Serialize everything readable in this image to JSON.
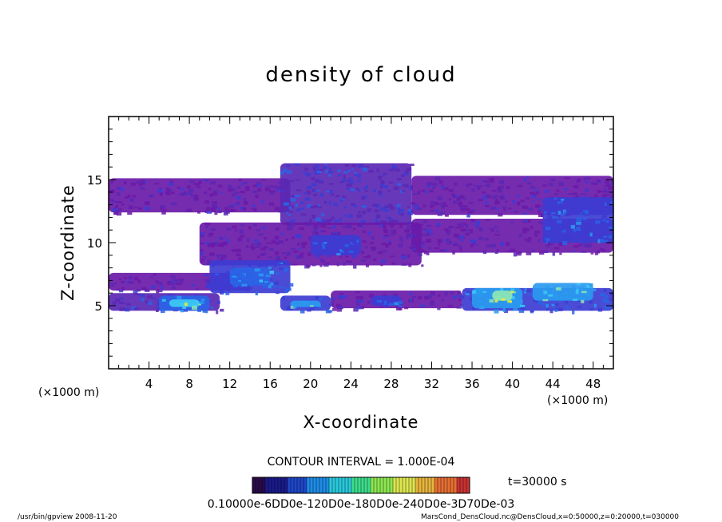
{
  "chart_data": {
    "type": "heatmap",
    "title": "density of cloud",
    "xlabel": "X-coordinate",
    "ylabel": "Z-coordinate",
    "x_unit": "(×1000 m)",
    "x_unit_right": "(×1000 m)",
    "xlim": [
      0,
      50
    ],
    "ylim": [
      0,
      20
    ],
    "x_ticks": [
      4,
      8,
      12,
      16,
      20,
      24,
      28,
      32,
      36,
      40,
      44,
      48
    ],
    "y_ticks": [
      5,
      10,
      15
    ],
    "contour_interval": "CONTOUR INTERVAL = 1.000E-04",
    "time_label": "t=30000 s",
    "colorbar_labels": [
      "0.1000e-6",
      "0.6000e-4",
      "0.1200e-3",
      "0.1800e-3",
      "0.2400e-3",
      "0.3000e-3",
      "0.3700e-3"
    ],
    "colorbar_text": "0.10000e-6DD0e-120D0e-180D0e-240D0e-3D70De-03",
    "colorbar_colors": [
      "#2a0a4a",
      "#1a1a8a",
      "#1e46c8",
      "#1e8ce6",
      "#28c8dc",
      "#3cdc8c",
      "#8ce650",
      "#dce650",
      "#e6b43c",
      "#e66e32",
      "#c83232"
    ],
    "cloud_color_scale": [
      "#6a1aa8",
      "#5a28b4",
      "#3c3cd2",
      "#2a64e6",
      "#2a9af0",
      "#3ccaf5",
      "#8ce6b4",
      "#e6f03c"
    ],
    "cloud_regions": [
      {
        "x": [
          0,
          18
        ],
        "z": [
          12.4,
          15.1
        ],
        "level": 0
      },
      {
        "x": [
          17,
          30
        ],
        "z": [
          11.4,
          16.3
        ],
        "level": 1
      },
      {
        "x": [
          30,
          50
        ],
        "z": [
          12.2,
          15.3
        ],
        "level": 0
      },
      {
        "x": [
          30,
          50
        ],
        "z": [
          9.2,
          11.9
        ],
        "level": 0
      },
      {
        "x": [
          9,
          31
        ],
        "z": [
          8.2,
          11.6
        ],
        "level": 0
      },
      {
        "x": [
          20,
          25
        ],
        "z": [
          9.0,
          10.6
        ],
        "level": 2
      },
      {
        "x": [
          43,
          50
        ],
        "z": [
          10.0,
          13.6
        ],
        "level": 2
      },
      {
        "x": [
          0,
          14
        ],
        "z": [
          6.2,
          7.6
        ],
        "level": 0
      },
      {
        "x": [
          10,
          18
        ],
        "z": [
          6.0,
          8.6
        ],
        "level": 2
      },
      {
        "x": [
          12,
          16
        ],
        "z": [
          6.6,
          8.0
        ],
        "level": 3
      },
      {
        "x": [
          0,
          11
        ],
        "z": [
          4.6,
          6.0
        ],
        "level": 1
      },
      {
        "x": [
          5,
          10
        ],
        "z": [
          4.6,
          5.8
        ],
        "level": 3
      },
      {
        "x": [
          6,
          9
        ],
        "z": [
          4.9,
          5.5
        ],
        "level": 5
      },
      {
        "x": [
          17,
          22
        ],
        "z": [
          4.6,
          5.8
        ],
        "level": 2
      },
      {
        "x": [
          18,
          21
        ],
        "z": [
          4.9,
          5.4
        ],
        "level": 4
      },
      {
        "x": [
          22,
          35
        ],
        "z": [
          4.8,
          6.2
        ],
        "level": 0
      },
      {
        "x": [
          26,
          29
        ],
        "z": [
          5.0,
          5.8
        ],
        "level": 2
      },
      {
        "x": [
          35,
          50
        ],
        "z": [
          4.6,
          6.4
        ],
        "level": 2
      },
      {
        "x": [
          36,
          41
        ],
        "z": [
          4.8,
          6.4
        ],
        "level": 4
      },
      {
        "x": [
          42,
          48
        ],
        "z": [
          5.4,
          6.8
        ],
        "level": 4
      },
      {
        "x": [
          38,
          40
        ],
        "z": [
          5.4,
          6.2
        ],
        "level": 6
      }
    ]
  },
  "footer": {
    "left": "/usr/bin/gpview   2008-11-20",
    "right": "MarsCond_DensCloud.nc@DensCloud,x=0:50000,z=0:20000,t=030000"
  }
}
